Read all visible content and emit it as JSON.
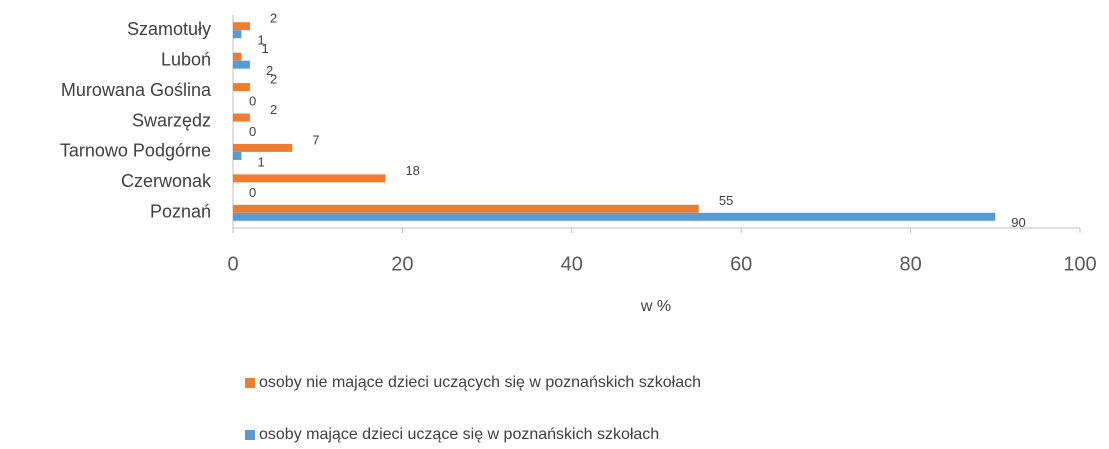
{
  "chart_data": {
    "type": "hbar",
    "categories": [
      "Szamotuły",
      "Luboń",
      "Murowana Goślina",
      "Swarzędz",
      "Tarnowo Podgórne",
      "Czerwonak",
      "Poznań"
    ],
    "series": [
      {
        "name": "osoby nie mające dzieci uczących się w poznańskich szkołach",
        "color": "#ed7d31",
        "values": [
          2,
          1,
          2,
          2,
          7,
          18,
          55
        ]
      },
      {
        "name": "osoby mające dzieci uczące się w poznańskich szkołach",
        "color": "#5b9bd5",
        "values": [
          1,
          2,
          0,
          0,
          1,
          0,
          90
        ]
      }
    ],
    "xlabel": "w %",
    "xlim": [
      0,
      100
    ],
    "xticks": [
      0,
      20,
      40,
      60,
      80,
      100
    ],
    "legend": "bottom"
  }
}
